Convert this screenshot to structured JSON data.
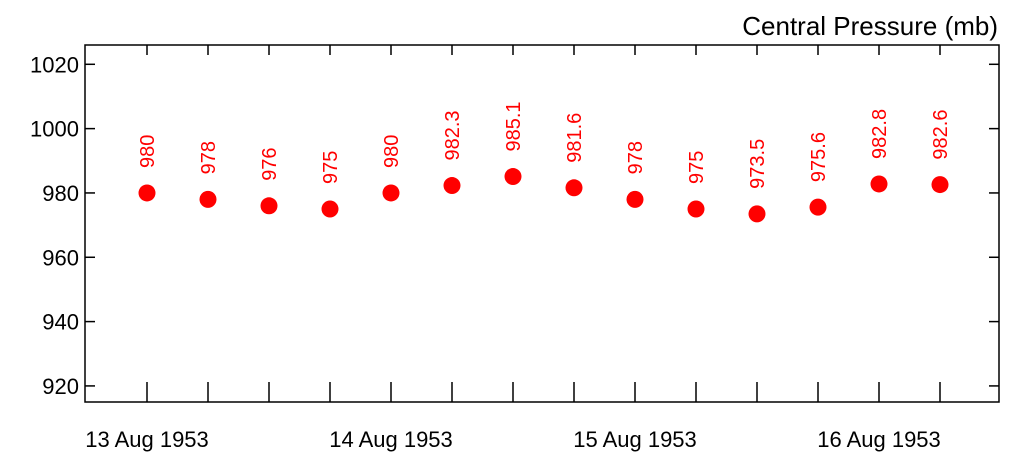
{
  "chart_data": {
    "type": "scatter",
    "title": "Central Pressure (mb)",
    "xlabel": "",
    "ylabel": "",
    "x_tick_labels": [
      "13 Aug 1953",
      "14 Aug 1953",
      "15 Aug 1953",
      "16 Aug 1953"
    ],
    "x": [
      "13 Aug 1953 00:00",
      "13 Aug 1953 06:00",
      "13 Aug 1953 12:00",
      "13 Aug 1953 18:00",
      "14 Aug 1953 00:00",
      "14 Aug 1953 06:00",
      "14 Aug 1953 12:00",
      "14 Aug 1953 18:00",
      "15 Aug 1953 00:00",
      "15 Aug 1953 06:00",
      "15 Aug 1953 12:00",
      "15 Aug 1953 18:00",
      "16 Aug 1953 00:00",
      "16 Aug 1953 06:00"
    ],
    "values": [
      980,
      978,
      976,
      975,
      980,
      982.3,
      985.1,
      981.6,
      978,
      975,
      973.5,
      975.6,
      982.8,
      982.6
    ],
    "labels": [
      "980",
      "978",
      "976",
      "975",
      "980",
      "982.3",
      "985.1",
      "981.6",
      "978",
      "975",
      "973.5",
      "975.6",
      "982.8",
      "982.6"
    ],
    "y_ticks": [
      920,
      940,
      960,
      980,
      1000,
      1020
    ],
    "ylim": [
      915,
      1026
    ],
    "marker_color": "#ff0000",
    "grid": false
  }
}
